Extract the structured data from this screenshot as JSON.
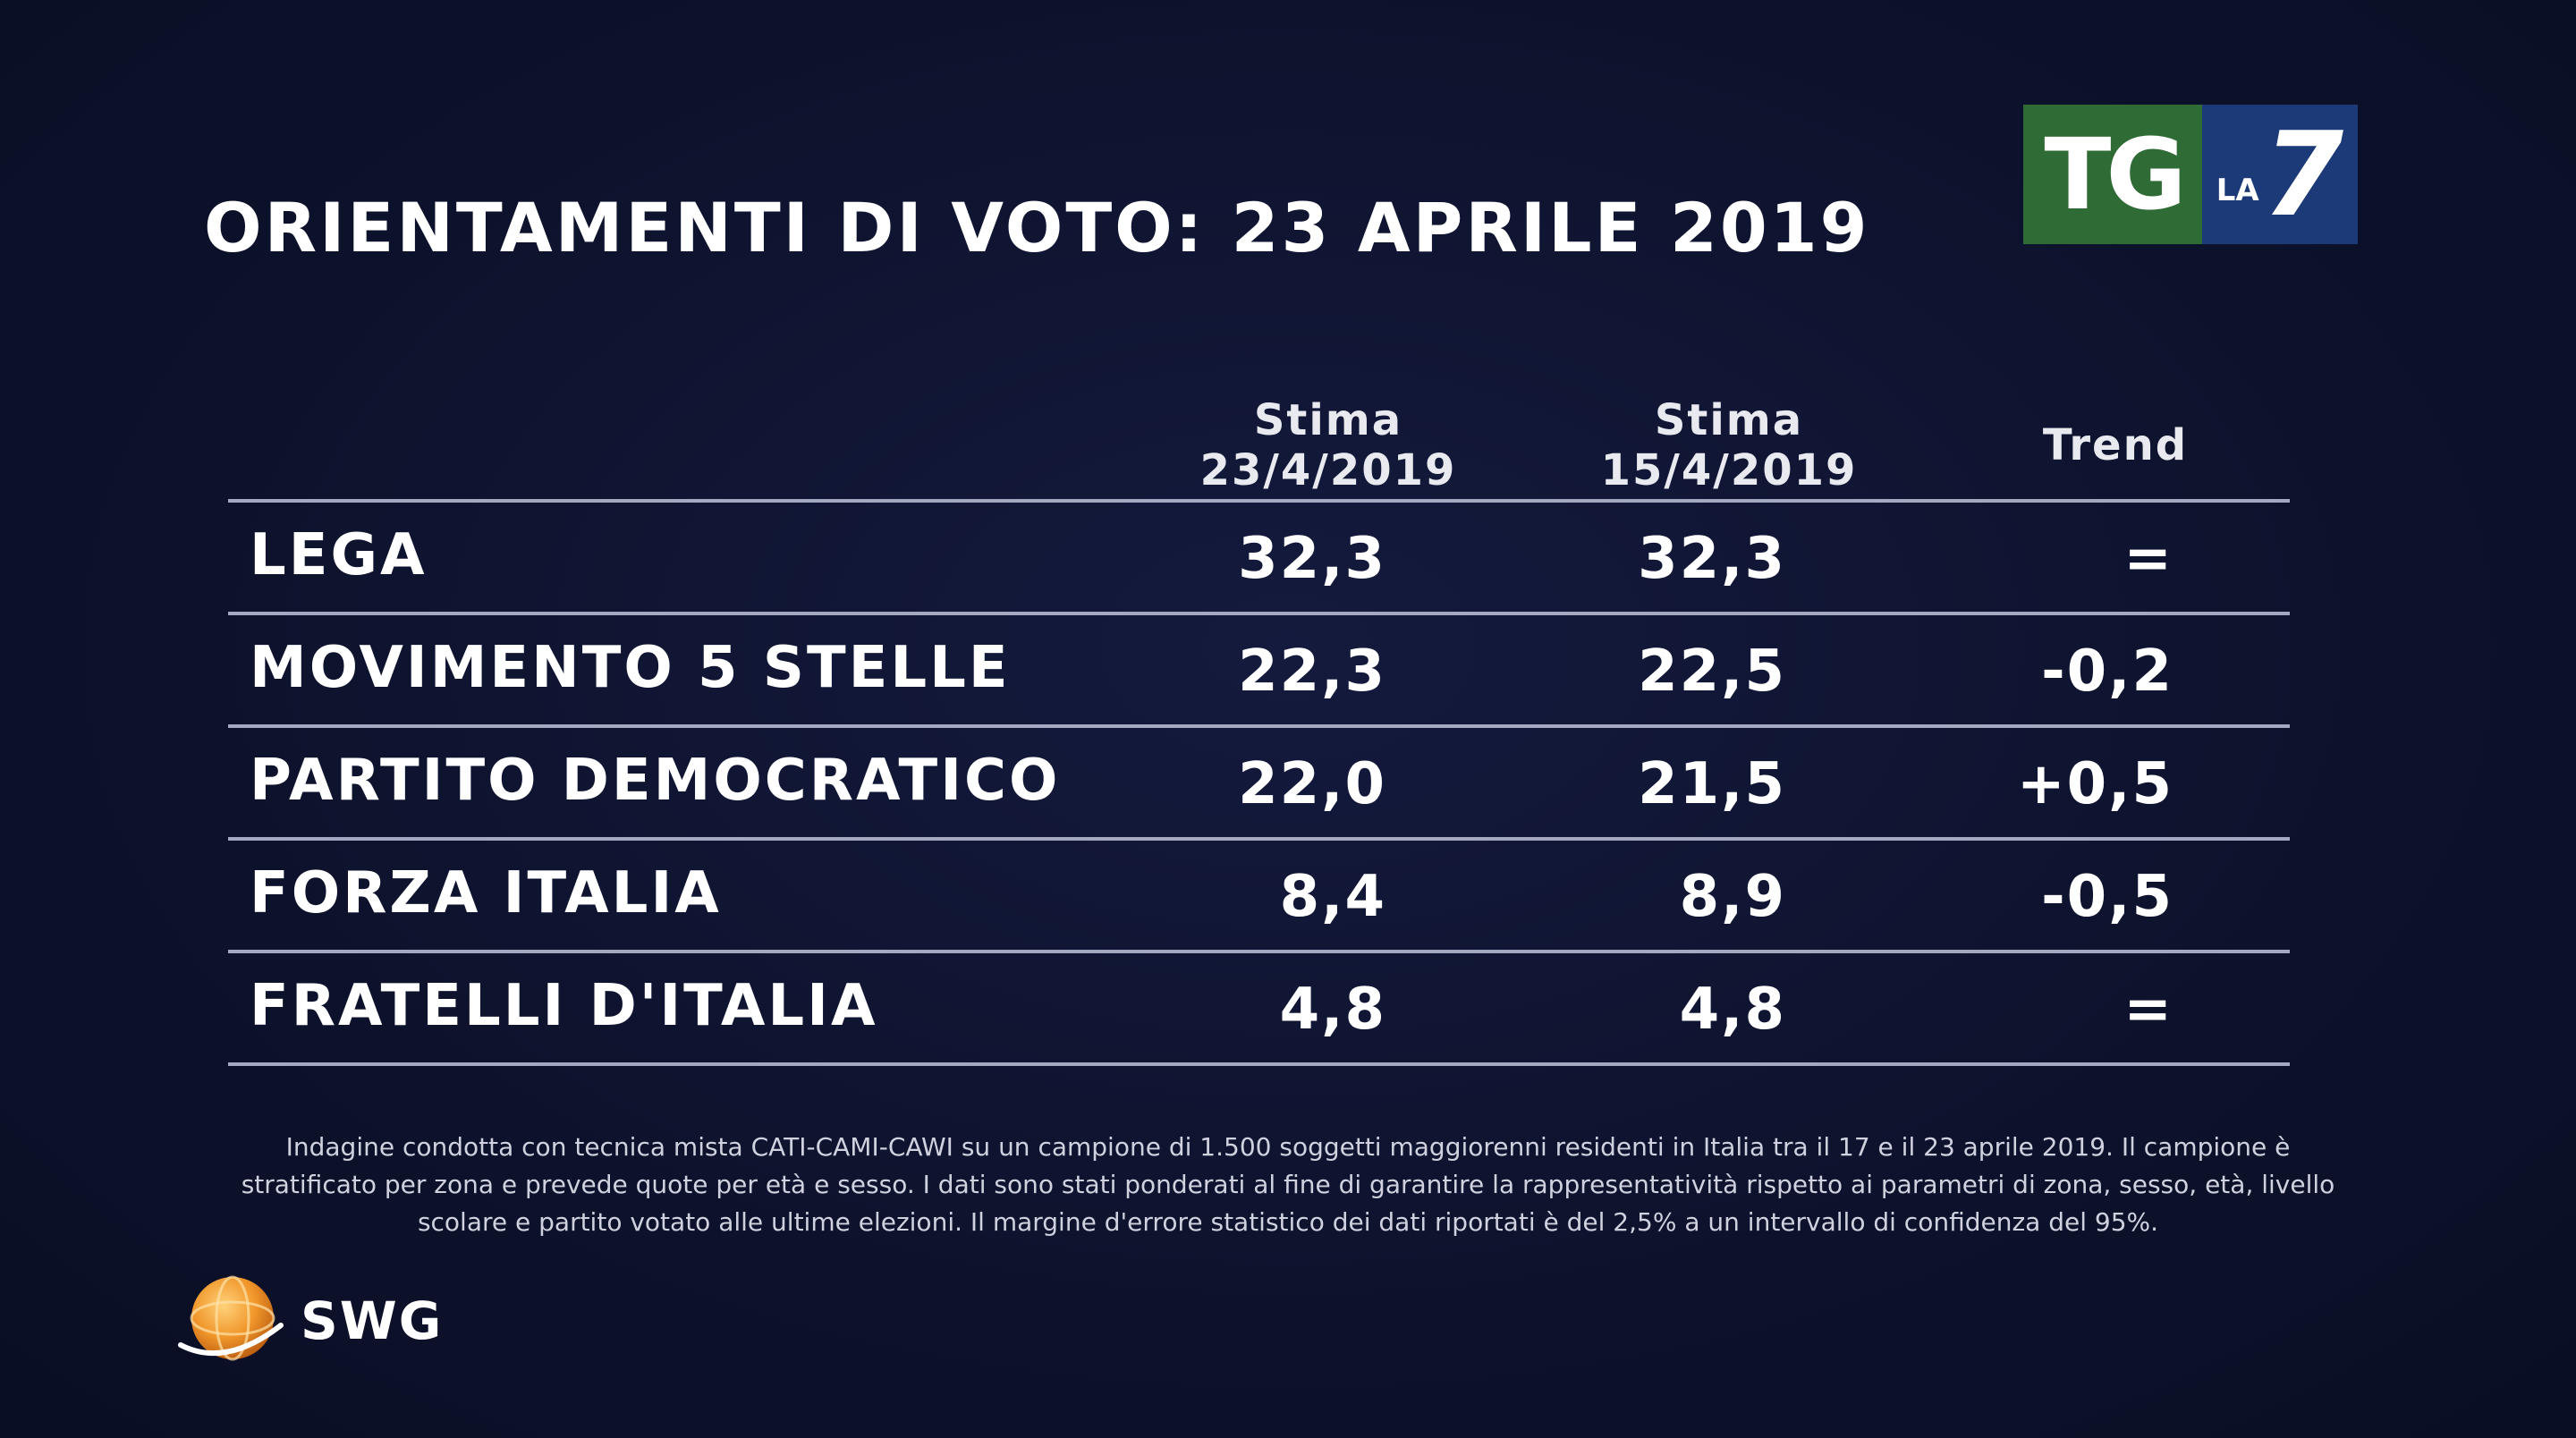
{
  "header": {
    "title": "ORIENTAMENTI DI VOTO: 23 APRILE 2019"
  },
  "logo": {
    "tg": "TG",
    "la": "LA",
    "seven": "7",
    "colors": {
      "tg_bg": "#2f6b35",
      "la7_bg": "#1c3a78"
    }
  },
  "table": {
    "col1_line1": "Stima",
    "col1_line2": "23/4/2019",
    "col2_line1": "Stima",
    "col2_line2": "15/4/2019",
    "col3": "Trend"
  },
  "chart_data": {
    "type": "table",
    "title": "ORIENTAMENTI DI VOTO: 23 APRILE 2019",
    "columns": [
      "",
      "Stima 23/4/2019",
      "Stima 15/4/2019",
      "Trend"
    ],
    "rows": [
      {
        "party": "LEGA",
        "stima_23": "32,3",
        "stima_15": "32,3",
        "trend": "="
      },
      {
        "party": "MOVIMENTO 5 STELLE",
        "stima_23": "22,3",
        "stima_15": "22,5",
        "trend": "-0,2"
      },
      {
        "party": "PARTITO DEMOCRATICO",
        "stima_23": "22,0",
        "stima_15": "21,5",
        "trend": "+0,5"
      },
      {
        "party": "FORZA ITALIA",
        "stima_23": "8,4",
        "stima_15": "8,9",
        "trend": "-0,5"
      },
      {
        "party": "FRATELLI D'ITALIA",
        "stima_23": "4,8",
        "stima_15": "4,8",
        "trend": "="
      }
    ]
  },
  "footnote": {
    "line1": "Indagine condotta con tecnica mista CATI-CAMI-CAWI su un campione di 1.500 soggetti maggiorenni residenti in Italia tra il 17 e il 23 aprile 2019. Il campione è",
    "line2": "stratificato per zona e prevede quote per età e sesso. I dati sono stati ponderati al fine di garantire la rappresentatività rispetto ai parametri di zona, sesso, età, livello",
    "line3": "scolare e partito votato alle ultime elezioni. Il margine d'errore statistico dei dati riportati è del 2,5% a un intervallo di confidenza del 95%."
  },
  "swg": {
    "label": "SWG",
    "icon": "swg-globe-icon"
  }
}
